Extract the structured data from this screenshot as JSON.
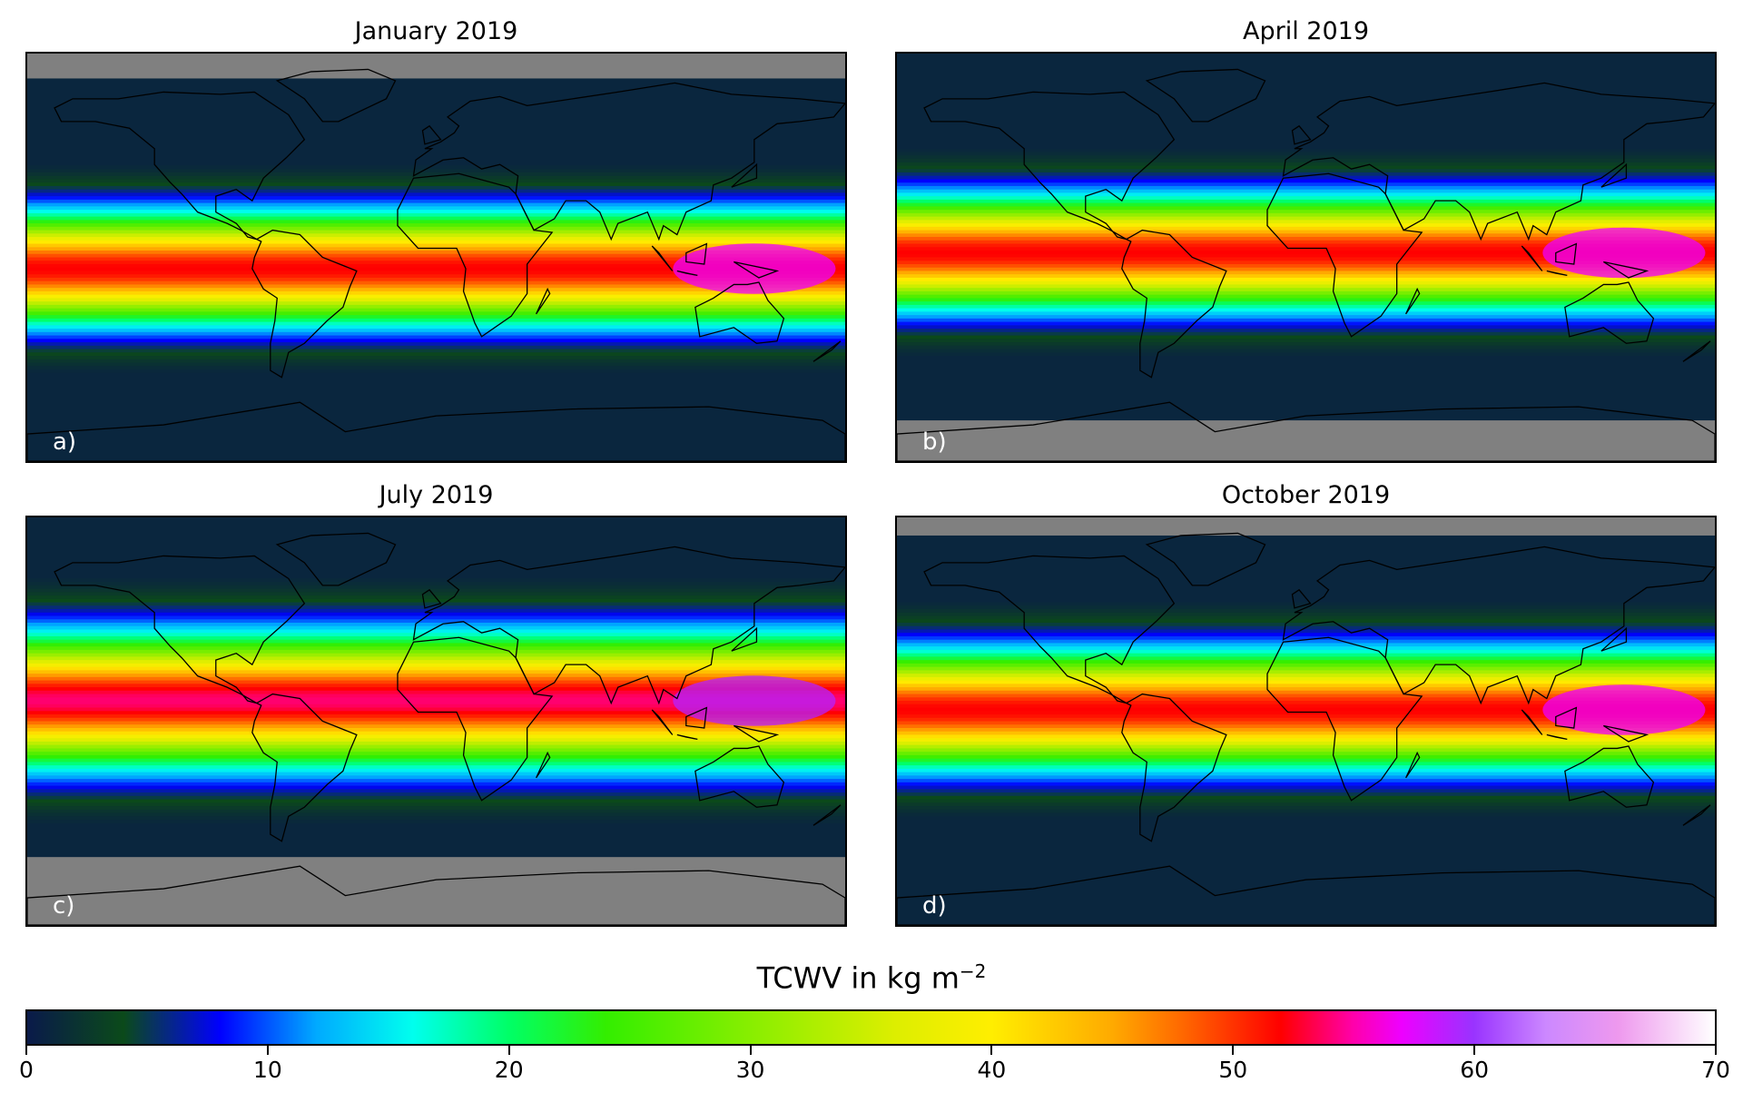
{
  "panels": [
    {
      "id": "jan",
      "title": "January 2019",
      "label": "a)",
      "season": "jan"
    },
    {
      "id": "apr",
      "title": "April 2019",
      "label": "b)",
      "season": "apr"
    },
    {
      "id": "jul",
      "title": "July 2019",
      "label": "c)",
      "season": "jul"
    },
    {
      "id": "oct",
      "title": "October 2019",
      "label": "d)",
      "season": "oct"
    }
  ],
  "colorbar": {
    "title_main": "TCWV in kg m",
    "title_sup": "−2",
    "min": 0,
    "max": 70,
    "ticks": [
      0,
      10,
      20,
      30,
      40,
      50,
      60,
      70
    ],
    "stops": [
      {
        "v": 0,
        "c": "#0a1a4a"
      },
      {
        "v": 4,
        "c": "#0b4a1a"
      },
      {
        "v": 8,
        "c": "#0000ff"
      },
      {
        "v": 12,
        "c": "#00aaff"
      },
      {
        "v": 16,
        "c": "#00ffee"
      },
      {
        "v": 20,
        "c": "#00ff66"
      },
      {
        "v": 24,
        "c": "#33ee00"
      },
      {
        "v": 30,
        "c": "#88ee00"
      },
      {
        "v": 36,
        "c": "#ddee00"
      },
      {
        "v": 40,
        "c": "#ffee00"
      },
      {
        "v": 45,
        "c": "#ffaa00"
      },
      {
        "v": 48,
        "c": "#ff6600"
      },
      {
        "v": 52,
        "c": "#ff0000"
      },
      {
        "v": 55,
        "c": "#ff00aa"
      },
      {
        "v": 57,
        "c": "#ee00ff"
      },
      {
        "v": 60,
        "c": "#9933ff"
      },
      {
        "v": 63,
        "c": "#cc88ff"
      },
      {
        "v": 66,
        "c": "#ee99ee"
      },
      {
        "v": 70,
        "c": "#ffffff"
      }
    ],
    "no_data_color": "#808080"
  }
}
